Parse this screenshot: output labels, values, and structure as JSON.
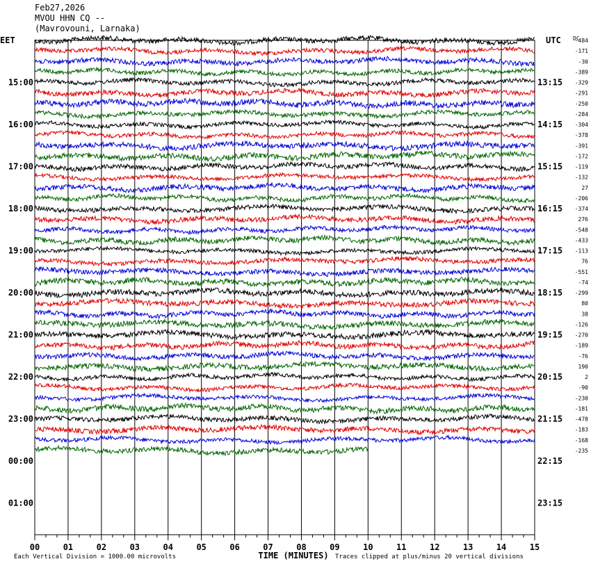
{
  "header": {
    "date": "Feb27,2026",
    "station": "MVOU HHN CQ --",
    "location": "(Mavrovouni, Larnaka)"
  },
  "axis": {
    "left_zone": "EET",
    "right_zone": "UTC",
    "dc_label": "DC",
    "xlabel": "TIME (MINUTES)",
    "footer_left": "Each Vertical Division = 1000.00 microvolts",
    "footer_right": "Traces clipped at plus/minus 20 vertical divisions"
  },
  "chart_data": {
    "type": "line",
    "title": "MVOU HHN CQ --",
    "subtitle": "(Mavrovouni, Larnaka)",
    "date": "Feb27,2026",
    "xlabel": "TIME (MINUTES)",
    "xlim": [
      0,
      15
    ],
    "x_ticks": [
      "00",
      "01",
      "02",
      "03",
      "04",
      "05",
      "06",
      "07",
      "08",
      "09",
      "10",
      "11",
      "12",
      "13",
      "14",
      "15"
    ],
    "left_hour_labels": [
      "15:00",
      "16:00",
      "17:00",
      "18:00",
      "19:00",
      "20:00",
      "21:00",
      "22:00",
      "23:00",
      "00:00",
      "01:00"
    ],
    "right_hour_labels": [
      "13:15",
      "14:15",
      "15:15",
      "16:15",
      "17:15",
      "18:15",
      "19:15",
      "20:15",
      "21:15",
      "22:15",
      "23:15"
    ],
    "trace_interval_minutes": 15,
    "trace_colors": [
      "#000000",
      "#e00000",
      "#0000d8",
      "#006400"
    ],
    "dc_offsets": [
      -484,
      -171,
      -30,
      -389,
      -329,
      -291,
      -250,
      -284,
      -304,
      -378,
      -391,
      -172,
      -119,
      -132,
      27,
      -206,
      -374,
      276,
      -548,
      -433,
      -113,
      76,
      -551,
      -74,
      -299,
      80,
      38,
      -126,
      -270,
      -189,
      -76,
      190,
      2,
      -90,
      -230,
      -181,
      -478,
      -183,
      -168,
      -235
    ],
    "traces_complete": 39,
    "last_trace_end_minute": 10,
    "vertical_division_microvolts": 1000.0,
    "clip_divisions": 20,
    "grid": true
  }
}
